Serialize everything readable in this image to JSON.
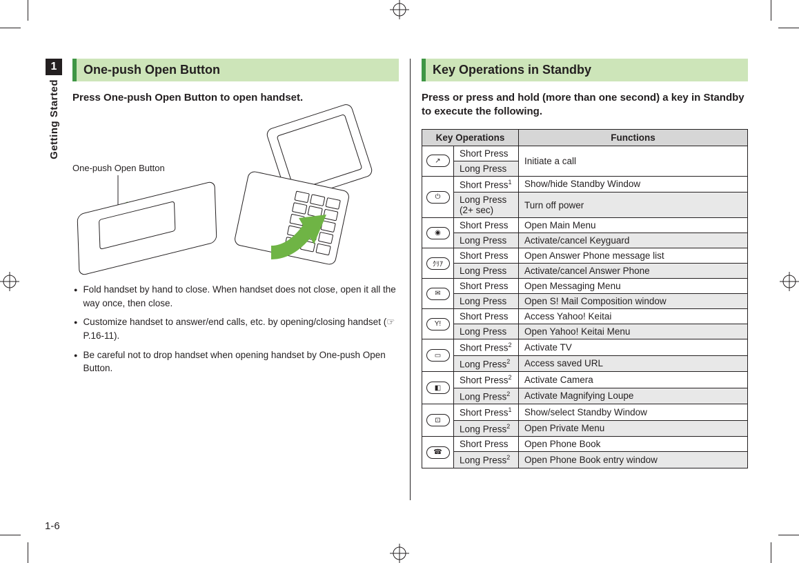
{
  "chapter_number": "1",
  "chapter_label": "Getting Started",
  "page_number": "1-6",
  "left": {
    "title": "One-push Open Button",
    "lead": "Press One-push Open Button to open handset.",
    "illus_label": "One-push Open Button",
    "notes": [
      "Fold handset by hand to close. When handset does not close, open it all the way once, then close.",
      "Customize handset to answer/end calls, etc. by opening/closing handset (☞P.16-11).",
      "Be careful not to drop handset when opening handset by One-push Open Button."
    ]
  },
  "right": {
    "title": "Key Operations in Standby",
    "lead": "Press or press and hold (more than one second) a key in Standby to execute the following.",
    "table": {
      "header_ops": "Key Operations",
      "header_func": "Functions",
      "groups": [
        {
          "icon": "↗",
          "rows": [
            {
              "press": "Short Press",
              "func": "Initiate a call",
              "merge_down": true
            },
            {
              "press": "Long Press",
              "func": "",
              "shaded": true
            }
          ]
        },
        {
          "icon": "⏻",
          "rows": [
            {
              "press": "Short Press",
              "sup": "1",
              "func": "Show/hide Standby Window"
            },
            {
              "press": "Long Press (2+ sec)",
              "func": "Turn off power",
              "shaded": true
            }
          ]
        },
        {
          "icon": "◉",
          "rows": [
            {
              "press": "Short Press",
              "func": "Open Main Menu"
            },
            {
              "press": "Long Press",
              "func": "Activate/cancel Keyguard",
              "shaded": true
            }
          ]
        },
        {
          "icon": "ｸﾘｱ",
          "rows": [
            {
              "press": "Short Press",
              "func": "Open Answer Phone message list"
            },
            {
              "press": "Long Press",
              "func": "Activate/cancel Answer Phone",
              "shaded": true
            }
          ]
        },
        {
          "icon": "✉",
          "rows": [
            {
              "press": "Short Press",
              "func": "Open Messaging Menu"
            },
            {
              "press": "Long Press",
              "func": "Open S! Mail Composition window",
              "shaded": true
            }
          ]
        },
        {
          "icon": "Y!",
          "rows": [
            {
              "press": "Short Press",
              "func": "Access Yahoo! Keitai"
            },
            {
              "press": "Long Press",
              "func": "Open Yahoo! Keitai Menu",
              "shaded": true
            }
          ]
        },
        {
          "icon": "▭",
          "rows": [
            {
              "press": "Short Press",
              "sup": "2",
              "func": "Activate TV"
            },
            {
              "press": "Long Press",
              "sup": "2",
              "func": "Access saved URL",
              "shaded": true
            }
          ]
        },
        {
          "icon": "◧",
          "rows": [
            {
              "press": "Short Press",
              "sup": "2",
              "func": "Activate Camera"
            },
            {
              "press": "Long Press",
              "sup": "2",
              "func": "Activate Magnifying Loupe",
              "shaded": true
            }
          ]
        },
        {
          "icon": "⊡",
          "rows": [
            {
              "press": "Short Press",
              "sup": "1",
              "func": "Show/select Standby Window"
            },
            {
              "press": "Long Press",
              "sup": "2",
              "func": "Open Private Menu",
              "shaded": true
            }
          ]
        },
        {
          "icon": "☎",
          "rows": [
            {
              "press": "Short Press",
              "func": "Open Phone Book"
            },
            {
              "press": "Long Press",
              "sup": "2",
              "func": "Open Phone Book entry window",
              "shaded": true
            }
          ]
        }
      ]
    }
  },
  "colors": {
    "title_bg": "#cde5b9",
    "title_accent": "#3f9645",
    "arrow": "#6fb445",
    "table_header_bg": "#d6d6d6",
    "row_shade": "#e8e8e8"
  }
}
